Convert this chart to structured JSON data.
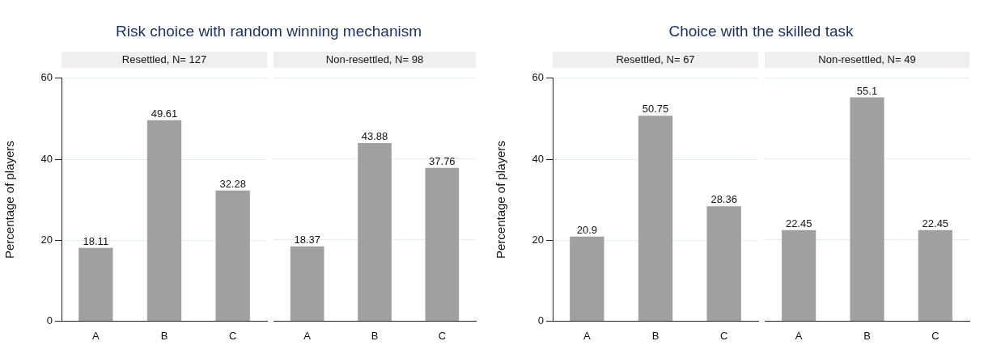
{
  "chart_data": [
    {
      "type": "bar",
      "title": "Risk choice with random winning mechanism",
      "subtitle": "Resettled, N= 127",
      "ylabel": "Percentage of players",
      "categories": [
        "A",
        "B",
        "C"
      ],
      "values": [
        18.11,
        49.61,
        32.28
      ],
      "color": "#a0a0a0",
      "ylim": [
        0,
        60
      ],
      "yticks": [
        0,
        20,
        40,
        60
      ],
      "grid": "y",
      "data_labels": true
    },
    {
      "type": "bar",
      "subtitle": "Non-resettled, N= 98",
      "categories": [
        "A",
        "B",
        "C"
      ],
      "values": [
        18.37,
        43.88,
        37.76
      ],
      "color": "#a0a0a0",
      "ylim": [
        0,
        60
      ],
      "yticks": [
        0,
        20,
        40,
        60
      ],
      "grid": "y",
      "data_labels": true,
      "tick_labels": "x"
    },
    {
      "type": "bar",
      "title": "Choice with the skilled task",
      "subtitle": "Resettled, N= 67",
      "ylabel": "Percentage of players",
      "categories": [
        "A",
        "B",
        "C"
      ],
      "values": [
        20.9,
        50.75,
        28.36
      ],
      "color": "#a0a0a0",
      "ylim": [
        0,
        60
      ],
      "yticks": [
        0,
        20,
        40,
        60
      ],
      "grid": "y",
      "data_labels": true
    },
    {
      "type": "bar",
      "subtitle": "Non-resettled, N= 49",
      "categories": [
        "A",
        "B",
        "C"
      ],
      "values": [
        22.45,
        55.1,
        22.45
      ],
      "color": "#a0a0a0",
      "ylim": [
        0,
        60
      ],
      "yticks": [
        0,
        20,
        40,
        60
      ],
      "grid": "y",
      "data_labels": true,
      "tick_labels": "x"
    }
  ]
}
